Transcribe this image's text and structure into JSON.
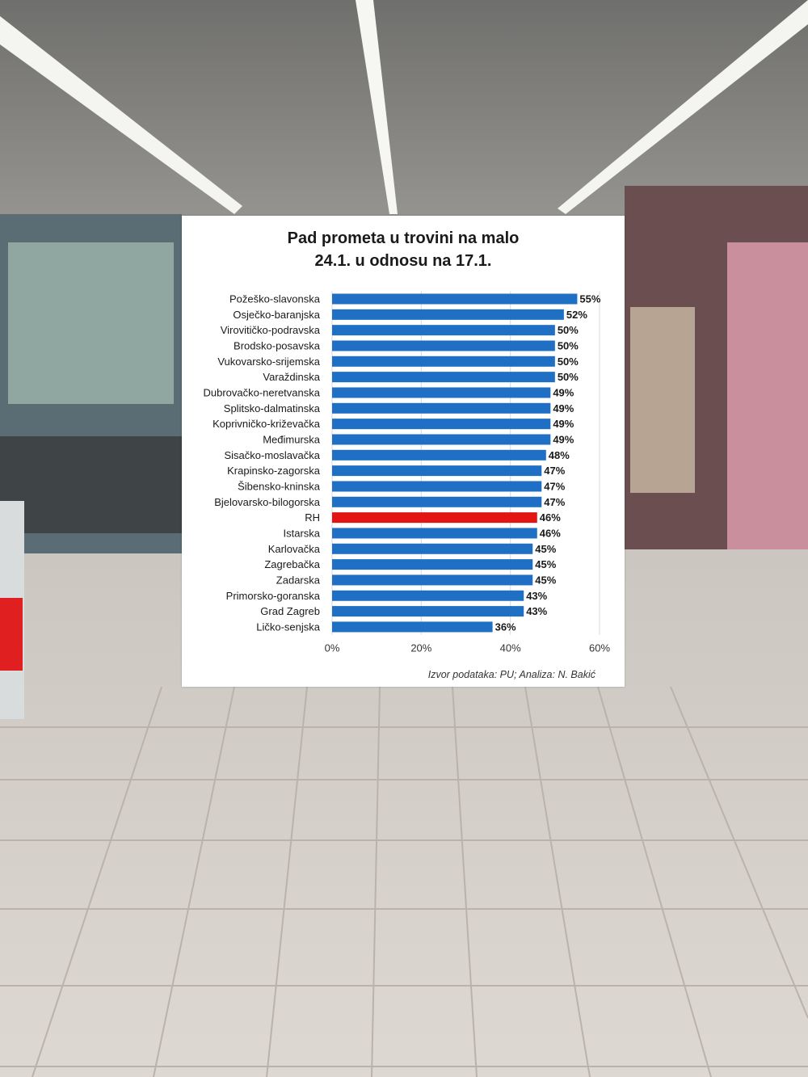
{
  "colors": {
    "bar": "#1f6fc5",
    "highlight_bar": "#e31414",
    "grid": "#d9d9d9"
  },
  "source_note": "Izvor podataka: PU; Analiza: N. Bakić",
  "chart_data": {
    "type": "bar",
    "orientation": "horizontal",
    "title": "Pad prometa u trovini na malo 24.1. u odnosu na 17.1.",
    "title_lines": [
      "Pad prometa u trovini na malo",
      "24.1. u odnosu na 17.1."
    ],
    "categories": [
      "Požeško-slavonska",
      "Osječko-baranjska",
      "Virovitičko-podravska",
      "Brodsko-posavska",
      "Vukovarsko-srijemska",
      "Varaždinska",
      "Dubrovačko-neretvanska",
      "Splitsko-dalmatinska",
      "Koprivničko-križevačka",
      "Međimurska",
      "Sisačko-moslavačka",
      "Krapinsko-zagorska",
      "Šibensko-kninska",
      "Bjelovarsko-bilogorska",
      "RH",
      "Istarska",
      "Karlovačka",
      "Zagrebačka",
      "Zadarska",
      "Primorsko-goranska",
      "Grad Zagreb",
      "Ličko-senjska"
    ],
    "values": [
      55,
      52,
      50,
      50,
      50,
      50,
      49,
      49,
      49,
      49,
      48,
      47,
      47,
      47,
      46,
      46,
      45,
      45,
      45,
      43,
      43,
      36
    ],
    "value_labels": [
      "55%",
      "52%",
      "50%",
      "50%",
      "50%",
      "50%",
      "49%",
      "49%",
      "49%",
      "49%",
      "48%",
      "47%",
      "47%",
      "47%",
      "46%",
      "46%",
      "45%",
      "45%",
      "45%",
      "43%",
      "43%",
      "36%"
    ],
    "highlight": "RH",
    "xlim": [
      0,
      60
    ],
    "xticks": [
      0,
      20,
      40,
      60
    ],
    "xtick_labels": [
      "0%",
      "20%",
      "40%",
      "60%"
    ],
    "grid": true,
    "legend": false
  }
}
